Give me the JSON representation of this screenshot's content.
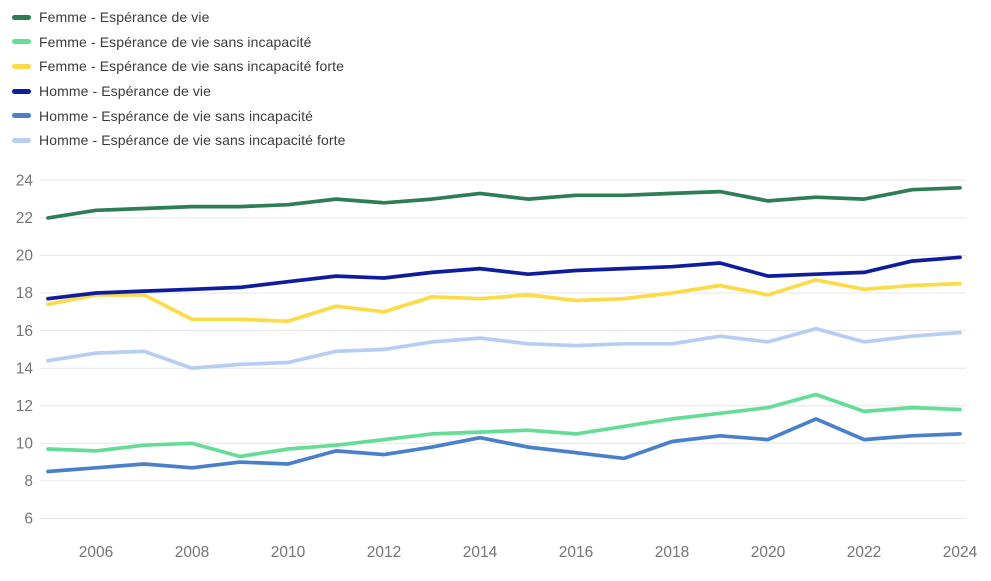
{
  "chart_data": {
    "type": "line",
    "title": "",
    "xlabel": "",
    "ylabel": "",
    "x": [
      2005,
      2006,
      2007,
      2008,
      2009,
      2010,
      2011,
      2012,
      2013,
      2014,
      2015,
      2016,
      2017,
      2018,
      2019,
      2020,
      2021,
      2022,
      2023,
      2024
    ],
    "xticks": [
      2006,
      2008,
      2010,
      2012,
      2014,
      2016,
      2018,
      2020,
      2022,
      2024
    ],
    "yticks": [
      6,
      8,
      10,
      12,
      14,
      16,
      18,
      20,
      22,
      24
    ],
    "ylim": [
      6,
      24
    ],
    "grid": "horizontal",
    "legend_position": "top-left",
    "background_color": "#ffffff",
    "grid_color": "#e6e6e6",
    "tick_label_color": "#757575",
    "legend_text_color": "#3b3b3b",
    "series": [
      {
        "name": "Femme - Espérance de vie",
        "color": "#2e7d55",
        "values": [
          22.0,
          22.4,
          22.5,
          22.6,
          22.6,
          22.7,
          23.0,
          22.8,
          23.0,
          23.3,
          23.0,
          23.2,
          23.2,
          23.3,
          23.4,
          22.9,
          23.1,
          23.0,
          23.5,
          23.6
        ]
      },
      {
        "name": "Femme - Espérance de vie sans incapacité",
        "color": "#65dd98",
        "values": [
          9.7,
          9.6,
          9.9,
          10.0,
          9.3,
          9.7,
          9.9,
          10.2,
          10.5,
          10.6,
          10.7,
          10.5,
          10.9,
          11.3,
          11.6,
          11.9,
          12.6,
          11.7,
          11.9,
          11.8
        ]
      },
      {
        "name": "Femme - Espérance de vie sans incapacité forte",
        "color": "#fbdb47",
        "values": [
          17.4,
          17.9,
          17.9,
          16.6,
          16.6,
          16.5,
          17.3,
          17.0,
          17.8,
          17.7,
          17.9,
          17.6,
          17.7,
          18.0,
          18.4,
          17.9,
          18.7,
          18.2,
          18.4,
          18.5
        ]
      },
      {
        "name": "Homme - Espérance de vie",
        "color": "#101c9e",
        "values": [
          17.7,
          18.0,
          18.1,
          18.2,
          18.3,
          18.6,
          18.9,
          18.8,
          19.1,
          19.3,
          19.0,
          19.2,
          19.3,
          19.4,
          19.6,
          18.9,
          19.0,
          19.1,
          19.7,
          19.9
        ]
      },
      {
        "name": "Homme - Espérance de vie sans incapacité",
        "color": "#4a80ca",
        "values": [
          8.5,
          8.7,
          8.9,
          8.7,
          9.0,
          8.9,
          9.6,
          9.4,
          9.8,
          10.3,
          9.8,
          9.5,
          9.2,
          10.1,
          10.4,
          10.2,
          11.3,
          10.2,
          10.4,
          10.5
        ]
      },
      {
        "name": "Homme - Espérance de vie sans incapacité forte",
        "color": "#b8cdf4",
        "values": [
          14.4,
          14.8,
          14.9,
          14.0,
          14.2,
          14.3,
          14.9,
          15.0,
          15.4,
          15.6,
          15.3,
          15.2,
          15.3,
          15.3,
          15.7,
          15.4,
          16.1,
          15.4,
          15.7,
          15.9
        ]
      }
    ]
  }
}
